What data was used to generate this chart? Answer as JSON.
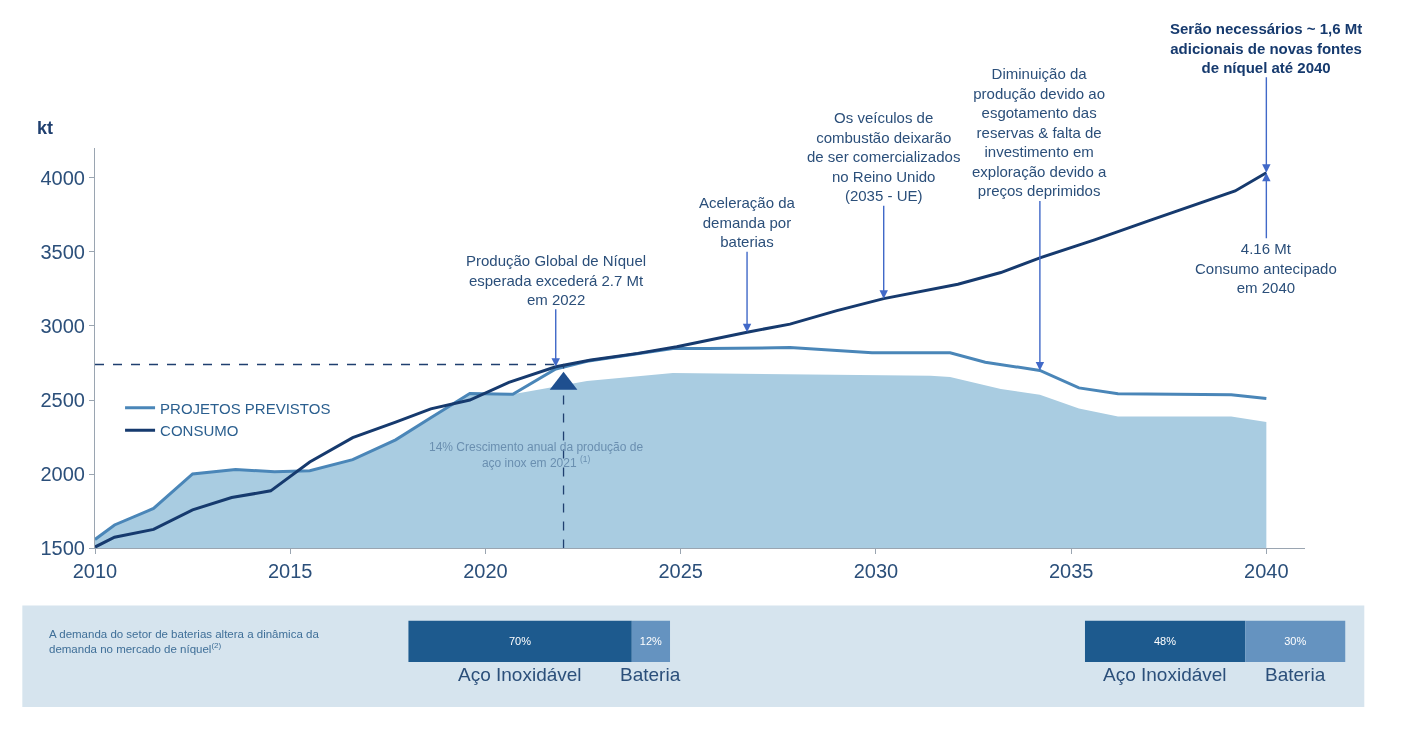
{
  "chart_data": [
    {
      "type": "line",
      "ylabel": "kt",
      "xlim": [
        2010,
        2041
      ],
      "xticks": [
        2010,
        2015,
        2020,
        2025,
        2030,
        2035,
        2040
      ],
      "ylim": [
        1500,
        4200
      ],
      "yticks": [
        1500,
        2000,
        2500,
        3000,
        3500,
        4000
      ],
      "legend": "left",
      "series": [
        {
          "type": "area",
          "color": "#a9cce1",
          "x": [
            2010,
            2010.5,
            2011.5,
            2012.5,
            2013.6,
            2014.6,
            2015.5,
            2016.6,
            2017.7,
            2018.6,
            2019.6,
            2020.7,
            2022.6,
            2024.8,
            2031.4,
            2031.9,
            2033.2,
            2034.2,
            2035.2,
            2036.2,
            2039.1,
            2040
          ],
          "values": [
            1560,
            1658,
            1769,
            2002,
            2032,
            2017,
            2023,
            2098,
            2232,
            2381,
            2545,
            2539,
            2628,
            2682,
            2664,
            2656,
            2575,
            2536,
            2444,
            2390,
            2390,
            2352
          ]
        },
        {
          "name": "PROJETOS PREVISTOS",
          "color": "#4a86b8",
          "x": [
            2010,
            2010.5,
            2011.5,
            2012.5,
            2013.6,
            2014.6,
            2015.5,
            2016.6,
            2017.7,
            2018.6,
            2019.6,
            2020.7,
            2021.8,
            2022.6,
            2024.8,
            2025.7,
            2027.8,
            2029.9,
            2031.9,
            2032.8,
            2034.2,
            2035.2,
            2036.2,
            2039.1,
            2040
          ],
          "values": [
            1560,
            1658,
            1769,
            2002,
            2032,
            2017,
            2023,
            2098,
            2232,
            2381,
            2545,
            2539,
            2710,
            2762,
            2847,
            2847,
            2854,
            2819,
            2819,
            2755,
            2700,
            2582,
            2543,
            2536,
            2510
          ]
        },
        {
          "name": "CONSUMO",
          "color": "#163a6e",
          "x": [
            2010,
            2010.5,
            2011.5,
            2012.5,
            2013.5,
            2014.5,
            2015.5,
            2016.6,
            2017.7,
            2018.6,
            2019.6,
            2020.6,
            2021.8,
            2022.7,
            2023.9,
            2024.9,
            2026.7,
            2027.8,
            2029.0,
            2030.2,
            2032.1,
            2033.2,
            2034.2,
            2035.6,
            2037.0,
            2039.2,
            2040
          ],
          "values": [
            1509,
            1575,
            1628,
            1760,
            1843,
            1888,
            2082,
            2247,
            2351,
            2441,
            2500,
            2620,
            2725,
            2770,
            2815,
            2860,
            2958,
            3012,
            3103,
            3184,
            3281,
            3360,
            3459,
            3580,
            3710,
            3910,
            4033
          ]
        },
        {
          "type": "line",
          "line_style": "dashed",
          "color": "#1f3f6f",
          "x": [
            2010,
            2022
          ],
          "values": [
            2740,
            2740
          ]
        },
        {
          "type": "line",
          "line_style": "dashed",
          "color": "#1f3f6f",
          "x": [
            2022,
            2022
          ],
          "values": [
            1500,
            2740
          ]
        },
        {
          "type": "scatter",
          "marker": "triangle",
          "color": "#1f4f8f",
          "x": [
            2022
          ],
          "values": [
            2610
          ]
        }
      ],
      "annotations": [
        {
          "text": "Produção Global de Níquel\nesperada excederá 2.7 Mt\nem 2022",
          "x": 2021.8,
          "y": 2725
        },
        {
          "text": "Aceleração da\ndemanda por\nbaterias",
          "x": 2026.7,
          "y": 2958
        },
        {
          "text": "Os veículos de\ncombustão deixarão\nde ser comercializados\nno Reino Unido\n(2035 - UE)",
          "x": 2030.2,
          "y": 3184
        },
        {
          "text": "Diminuição da\nprodução devido ao\nesgotamento das\nreservas & falta de\ninvestimento em\nexploração devido a\npreços deprimidos",
          "x": 2034.2,
          "y": 2700
        },
        {
          "text": "Serão necessários ~ 1,6 Mt\nadicionais de novas fontes\nde níquel até 2040",
          "x": 2040,
          "y": 4033
        },
        {
          "text": "4.16 Mt\nConsumo antecipado\nem 2040",
          "x": 2040,
          "y": 4033
        },
        "14% Crescimento anual da produção de\naço inox em 2021 $^{(1)}$"
      ]
    },
    {
      "type": "bar",
      "orientation": "horizontal",
      "stacked": true,
      "categories": [
        null
      ],
      "tick_labels": false,
      "series": [
        {
          "name": "Aço Inoxidável",
          "color": "#1d5a8e",
          "values": [
            70
          ],
          "value_labels": [
            "70%"
          ]
        },
        {
          "name": "Bateria",
          "color": "#6593c0",
          "values": [
            12
          ],
          "value_labels": [
            "12%"
          ]
        }
      ],
      "annotations": [
        "A demanda do setor de baterias altera a dinâmica da\ndemanda no mercado de níquel$^{(2)}$"
      ]
    },
    {
      "type": "bar",
      "orientation": "horizontal",
      "stacked": true,
      "categories": [
        null
      ],
      "tick_labels": false,
      "series": [
        {
          "name": "Aço Inoxidável",
          "color": "#1d5a8e",
          "values": [
            48
          ],
          "value_labels": [
            "48%"
          ]
        },
        {
          "name": "Bateria",
          "color": "#6593c0",
          "values": [
            30
          ],
          "value_labels": [
            "30%"
          ]
        }
      ]
    }
  ]
}
